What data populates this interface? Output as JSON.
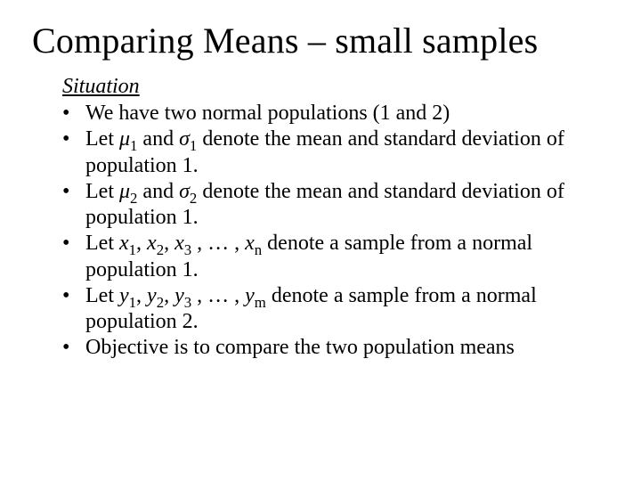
{
  "title": "Comparing Means – small samples",
  "situation_heading": "Situation",
  "bullets": {
    "b0": "We have two normal populations (1 and 2)",
    "b1_pre": "Let ",
    "b1_mu": "μ",
    "b1_sub1": "1",
    "b1_mid1": " and ",
    "b1_sigma": "σ",
    "b1_sub2": "1",
    "b1_post": " denote the mean and standard deviation of population 1.",
    "b2_pre": "Let ",
    "b2_mu": "μ",
    "b2_sub1": "2",
    "b2_mid1": " and ",
    "b2_sigma": "σ",
    "b2_sub2": "2",
    "b2_post": " denote the mean and standard deviation of population 1.",
    "b3_pre": "Let ",
    "b3_x": "x",
    "b3_s1": "1",
    "b3_c1": ", ",
    "b3_s2": "2",
    "b3_c2": ", ",
    "b3_s3": "3",
    "b3_mid": " , … , ",
    "b3_sn": "n",
    "b3_post": " denote a sample from a normal population 1.",
    "b4_pre": "Let ",
    "b4_y": "y",
    "b4_s1": "1",
    "b4_c1": ", ",
    "b4_s2": "2",
    "b4_c2": ", ",
    "b4_s3": "3",
    "b4_mid": " , … , ",
    "b4_sm": "m",
    "b4_post": " denote a sample from a normal population 2.",
    "b5": "Objective is to compare the two population means"
  }
}
